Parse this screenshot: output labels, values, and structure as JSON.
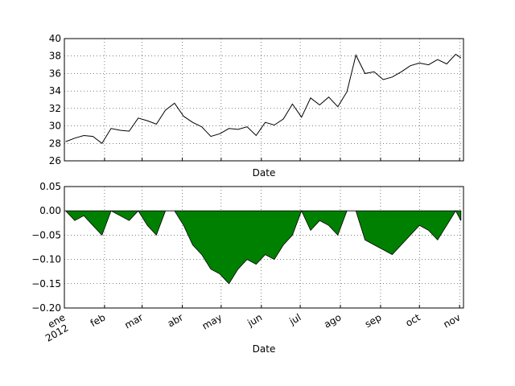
{
  "chart_data": [
    {
      "type": "line",
      "xlabel": "Date",
      "ylabel": "",
      "ylim": [
        26,
        40
      ],
      "yticks": [
        "26",
        "28",
        "30",
        "32",
        "34",
        "36",
        "38",
        "40"
      ],
      "grid": true,
      "line_color": "#000000",
      "x_range": [
        "2012-01-01",
        "2012-11-04"
      ],
      "series": [
        {
          "dates": [
            "2012-01-02",
            "2012-01-09",
            "2012-01-16",
            "2012-01-23",
            "2012-01-30",
            "2012-02-06",
            "2012-02-13",
            "2012-02-20",
            "2012-02-27",
            "2012-03-05",
            "2012-03-12",
            "2012-03-19",
            "2012-03-26",
            "2012-04-02",
            "2012-04-09",
            "2012-04-16",
            "2012-04-23",
            "2012-04-30",
            "2012-05-07",
            "2012-05-14",
            "2012-05-21",
            "2012-05-28",
            "2012-06-04",
            "2012-06-11",
            "2012-06-18",
            "2012-06-25",
            "2012-07-02",
            "2012-07-09",
            "2012-07-16",
            "2012-07-23",
            "2012-07-30",
            "2012-08-06",
            "2012-08-13",
            "2012-08-20",
            "2012-08-27",
            "2012-09-03",
            "2012-09-10",
            "2012-09-17",
            "2012-09-24",
            "2012-10-01",
            "2012-10-08",
            "2012-10-15",
            "2012-10-22",
            "2012-10-29",
            "2012-11-02"
          ],
          "values": [
            28.2,
            28.6,
            28.9,
            28.8,
            28.0,
            29.7,
            29.5,
            29.4,
            30.9,
            30.6,
            30.2,
            31.8,
            32.6,
            31.1,
            30.4,
            29.9,
            28.8,
            29.1,
            29.7,
            29.6,
            29.9,
            28.9,
            30.4,
            30.1,
            30.8,
            32.5,
            31.0,
            33.2,
            32.4,
            33.3,
            32.2,
            33.9,
            38.1,
            36.0,
            36.2,
            35.3,
            35.6,
            36.2,
            36.9,
            37.2,
            37.0,
            37.6,
            37.1,
            38.2,
            37.8
          ]
        }
      ]
    },
    {
      "type": "area",
      "xlabel": "Date",
      "ylabel": "",
      "ylim": [
        -0.2,
        0.05
      ],
      "yticks": [
        "0.05",
        "0.00",
        "−0.05",
        "−0.10",
        "−0.15",
        "−0.20"
      ],
      "grid": true,
      "fill_color": "#008000",
      "x_range": [
        "2012-01-01",
        "2012-11-04"
      ],
      "xticks": [
        {
          "date": "2012-01-01",
          "label": "ene",
          "sublabel": "2012"
        },
        {
          "date": "2012-02-01",
          "label": "feb"
        },
        {
          "date": "2012-03-01",
          "label": "mar"
        },
        {
          "date": "2012-04-01",
          "label": "abr"
        },
        {
          "date": "2012-05-01",
          "label": "may"
        },
        {
          "date": "2012-06-01",
          "label": "jun"
        },
        {
          "date": "2012-07-01",
          "label": "jul"
        },
        {
          "date": "2012-08-01",
          "label": "ago"
        },
        {
          "date": "2012-09-01",
          "label": "sep"
        },
        {
          "date": "2012-10-01",
          "label": "oct"
        },
        {
          "date": "2012-11-01",
          "label": "nov"
        }
      ],
      "series": [
        {
          "dates": [
            "2012-01-02",
            "2012-01-09",
            "2012-01-16",
            "2012-01-23",
            "2012-01-30",
            "2012-02-06",
            "2012-02-13",
            "2012-02-20",
            "2012-02-27",
            "2012-03-05",
            "2012-03-12",
            "2012-03-19",
            "2012-03-26",
            "2012-04-02",
            "2012-04-09",
            "2012-04-16",
            "2012-04-23",
            "2012-04-30",
            "2012-05-07",
            "2012-05-14",
            "2012-05-21",
            "2012-05-28",
            "2012-06-04",
            "2012-06-11",
            "2012-06-18",
            "2012-06-25",
            "2012-07-02",
            "2012-07-09",
            "2012-07-16",
            "2012-07-23",
            "2012-07-30",
            "2012-08-06",
            "2012-08-13",
            "2012-08-20",
            "2012-08-27",
            "2012-09-03",
            "2012-09-10",
            "2012-09-17",
            "2012-09-24",
            "2012-10-01",
            "2012-10-08",
            "2012-10-15",
            "2012-10-22",
            "2012-10-29",
            "2012-11-02"
          ],
          "values": [
            0.0,
            -0.02,
            -0.01,
            -0.03,
            -0.05,
            0.0,
            -0.01,
            -0.02,
            0.0,
            -0.03,
            -0.05,
            0.0,
            0.0,
            -0.03,
            -0.07,
            -0.09,
            -0.12,
            -0.13,
            -0.15,
            -0.12,
            -0.1,
            -0.11,
            -0.09,
            -0.1,
            -0.07,
            -0.05,
            0.0,
            -0.04,
            -0.02,
            -0.03,
            -0.05,
            0.0,
            0.0,
            -0.06,
            -0.07,
            -0.08,
            -0.09,
            -0.07,
            -0.05,
            -0.03,
            -0.04,
            -0.06,
            -0.03,
            0.0,
            -0.02
          ]
        }
      ]
    }
  ]
}
